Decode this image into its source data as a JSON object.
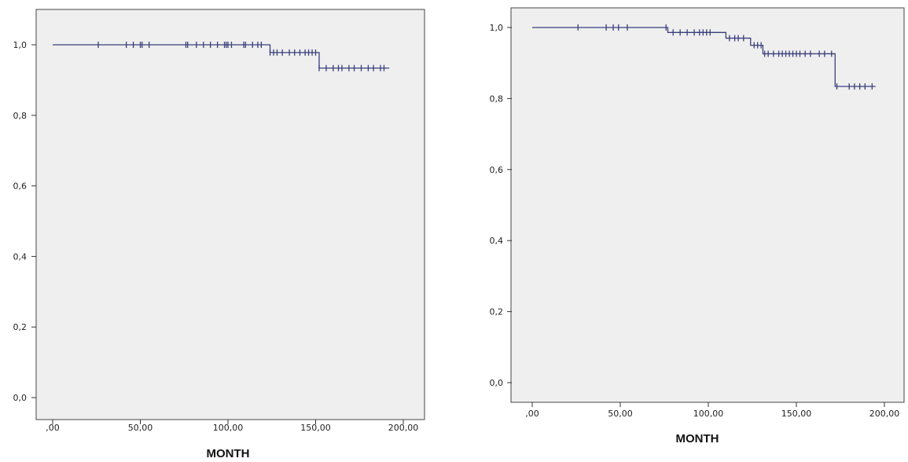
{
  "chart_data": [
    {
      "type": "line",
      "subtype": "kaplan-meier",
      "title": "",
      "xlabel": "MONTH",
      "ylabel": "",
      "xlim": [
        0,
        200
      ],
      "ylim": [
        0,
        1
      ],
      "x_ticks": [
        ",00",
        "50,00",
        "100,00",
        "150,00",
        "200,00"
      ],
      "y_ticks": [
        "0,0",
        "0,2",
        "0,4",
        "0,6",
        "0,8",
        "1,0"
      ],
      "grid": false,
      "line_color": "#3a3f7a",
      "background_color": "#efefef",
      "series": [
        {
          "steps": [
            [
              0,
              1.0
            ],
            [
              124,
              0.978
            ],
            [
              152,
              0.934
            ],
            [
              192,
              0.934
            ]
          ],
          "censored": [
            [
              26,
              1.0
            ],
            [
              42,
              1.0
            ],
            [
              46,
              1.0
            ],
            [
              50,
              1.0
            ],
            [
              51,
              1.0
            ],
            [
              55,
              1.0
            ],
            [
              76,
              1.0
            ],
            [
              77,
              1.0
            ],
            [
              82,
              1.0
            ],
            [
              86,
              1.0
            ],
            [
              90,
              1.0
            ],
            [
              94,
              1.0
            ],
            [
              98,
              1.0
            ],
            [
              99,
              1.0
            ],
            [
              100,
              1.0
            ],
            [
              102,
              1.0
            ],
            [
              109,
              1.0
            ],
            [
              110,
              1.0
            ],
            [
              114,
              1.0
            ],
            [
              117,
              1.0
            ],
            [
              119,
              1.0
            ],
            [
              124,
              0.978
            ],
            [
              126,
              0.978
            ],
            [
              128,
              0.978
            ],
            [
              131,
              0.978
            ],
            [
              135,
              0.978
            ],
            [
              138,
              0.978
            ],
            [
              141,
              0.978
            ],
            [
              144,
              0.978
            ],
            [
              146,
              0.978
            ],
            [
              148,
              0.978
            ],
            [
              150,
              0.978
            ],
            [
              152,
              0.934
            ],
            [
              156,
              0.934
            ],
            [
              160,
              0.934
            ],
            [
              163,
              0.934
            ],
            [
              165,
              0.934
            ],
            [
              169,
              0.934
            ],
            [
              172,
              0.934
            ],
            [
              176,
              0.934
            ],
            [
              180,
              0.934
            ],
            [
              183,
              0.934
            ],
            [
              187,
              0.934
            ],
            [
              189,
              0.934
            ]
          ]
        }
      ]
    },
    {
      "type": "line",
      "subtype": "kaplan-meier",
      "title": "",
      "xlabel": "MONTH",
      "ylabel": "",
      "xlim": [
        0,
        200
      ],
      "ylim": [
        0,
        1
      ],
      "x_ticks": [
        ",00",
        "50,00",
        "100,00",
        "150,00",
        "200,00"
      ],
      "y_ticks": [
        "0,0",
        "0,2",
        "0,4",
        "0,6",
        "0,8",
        "1,0"
      ],
      "grid": false,
      "line_color": "#3a3f7a",
      "background_color": "#efefef",
      "series": [
        {
          "steps": [
            [
              0,
              1.0
            ],
            [
              77,
              0.986
            ],
            [
              110,
              0.97
            ],
            [
              124,
              0.95
            ],
            [
              131,
              0.926
            ],
            [
              172,
              0.834
            ],
            [
              195,
              0.834
            ]
          ],
          "censored": [
            [
              26,
              1.0
            ],
            [
              42,
              1.0
            ],
            [
              46,
              1.0
            ],
            [
              49,
              1.0
            ],
            [
              54,
              1.0
            ],
            [
              76,
              1.0
            ],
            [
              80,
              0.986
            ],
            [
              84,
              0.986
            ],
            [
              88,
              0.986
            ],
            [
              92,
              0.986
            ],
            [
              95,
              0.986
            ],
            [
              97,
              0.986
            ],
            [
              99,
              0.986
            ],
            [
              101,
              0.986
            ],
            [
              112,
              0.97
            ],
            [
              115,
              0.97
            ],
            [
              117,
              0.97
            ],
            [
              120,
              0.97
            ],
            [
              126,
              0.95
            ],
            [
              128,
              0.95
            ],
            [
              130,
              0.95
            ],
            [
              132,
              0.926
            ],
            [
              134,
              0.926
            ],
            [
              137,
              0.926
            ],
            [
              140,
              0.926
            ],
            [
              142,
              0.926
            ],
            [
              144,
              0.926
            ],
            [
              146,
              0.926
            ],
            [
              148,
              0.926
            ],
            [
              150,
              0.926
            ],
            [
              152,
              0.926
            ],
            [
              155,
              0.926
            ],
            [
              158,
              0.926
            ],
            [
              163,
              0.926
            ],
            [
              166,
              0.926
            ],
            [
              170,
              0.926
            ],
            [
              173,
              0.834
            ],
            [
              180,
              0.834
            ],
            [
              183,
              0.834
            ],
            [
              186,
              0.834
            ],
            [
              189,
              0.834
            ],
            [
              193,
              0.834
            ]
          ]
        }
      ]
    }
  ]
}
